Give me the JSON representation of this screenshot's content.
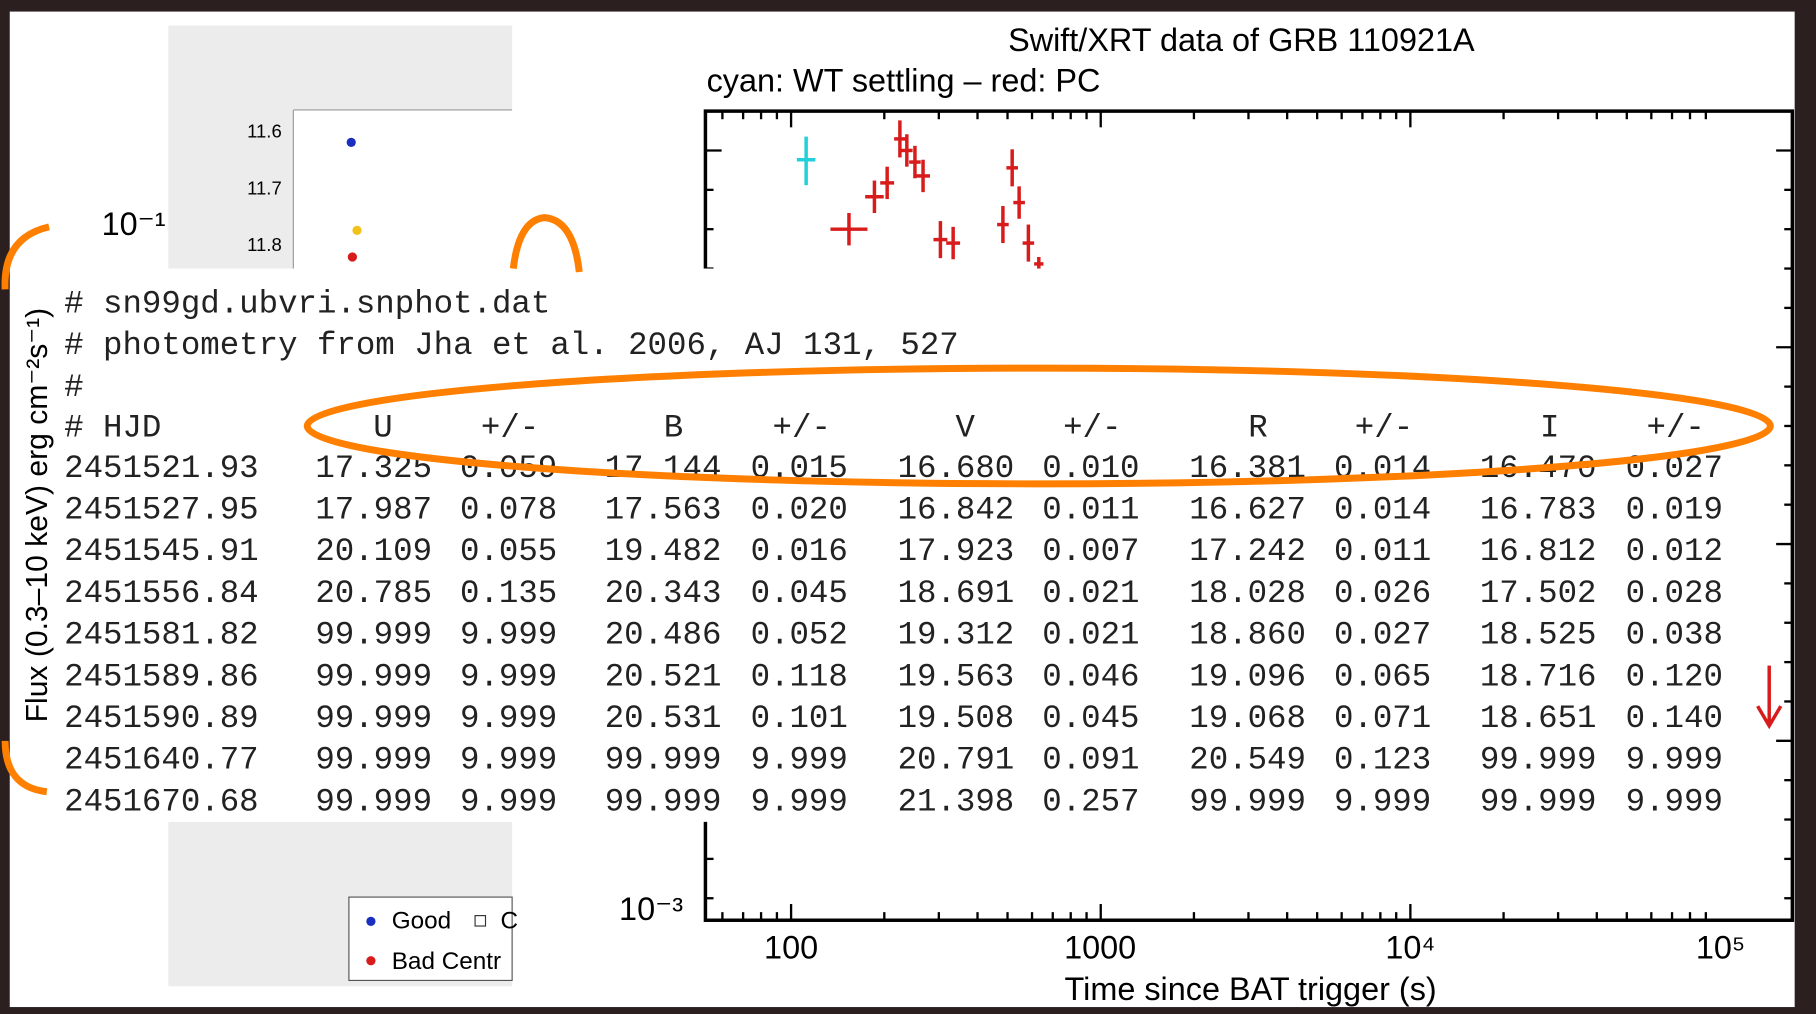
{
  "plot": {
    "title": "Swift/XRT data of GRB 110921A",
    "subtitle": "cyan: WT settling – red: PC",
    "y_label": "Flux (0.3–10 keV) erg cm⁻²s⁻¹)",
    "x_label": "Time since BAT trigger (s)",
    "x_tick_labels": [
      "100",
      "1000",
      "10⁴",
      "10⁵"
    ],
    "y_tick_labels": [
      "10⁻¹",
      "10⁻³"
    ]
  },
  "inset": {
    "y_tick_labels": [
      "11.6",
      "11.7",
      "11.8"
    ],
    "legend": [
      "Good",
      "C",
      "Bad Centr"
    ]
  },
  "table": {
    "comments": [
      "# sn99gd.ubvri.snphot.dat",
      "# photometry from Jha et al. 2006, AJ 131, 527",
      "#"
    ],
    "header": [
      "# HJD",
      "U",
      "+/-",
      "B",
      "+/-",
      "V",
      "+/-",
      "R",
      "+/-",
      "I",
      "+/-"
    ],
    "rows": [
      [
        "2451521.93",
        "17.325",
        "0.059",
        "17.144",
        "0.015",
        "16.680",
        "0.010",
        "16.381",
        "0.014",
        "16.470",
        "0.027"
      ],
      [
        "2451527.95",
        "17.987",
        "0.078",
        "17.563",
        "0.020",
        "16.842",
        "0.011",
        "16.627",
        "0.014",
        "16.783",
        "0.019"
      ],
      [
        "2451545.91",
        "20.109",
        "0.055",
        "19.482",
        "0.016",
        "17.923",
        "0.007",
        "17.242",
        "0.011",
        "16.812",
        "0.012"
      ],
      [
        "2451556.84",
        "20.785",
        "0.135",
        "20.343",
        "0.045",
        "18.691",
        "0.021",
        "18.028",
        "0.026",
        "17.502",
        "0.028"
      ],
      [
        "2451581.82",
        "99.999",
        "9.999",
        "20.486",
        "0.052",
        "19.312",
        "0.021",
        "18.860",
        "0.027",
        "18.525",
        "0.038"
      ],
      [
        "2451589.86",
        "99.999",
        "9.999",
        "20.521",
        "0.118",
        "19.563",
        "0.046",
        "19.096",
        "0.065",
        "18.716",
        "0.120"
      ],
      [
        "2451590.89",
        "99.999",
        "9.999",
        "20.531",
        "0.101",
        "19.508",
        "0.045",
        "19.068",
        "0.071",
        "18.651",
        "0.140"
      ],
      [
        "2451640.77",
        "99.999",
        "9.999",
        "99.999",
        "9.999",
        "20.791",
        "0.091",
        "20.549",
        "0.123",
        "99.999",
        "9.999"
      ],
      [
        "2451670.68",
        "99.999",
        "9.999",
        "99.999",
        "9.999",
        "21.398",
        "0.257",
        "99.999",
        "9.999",
        "99.999",
        "9.999"
      ]
    ]
  }
}
